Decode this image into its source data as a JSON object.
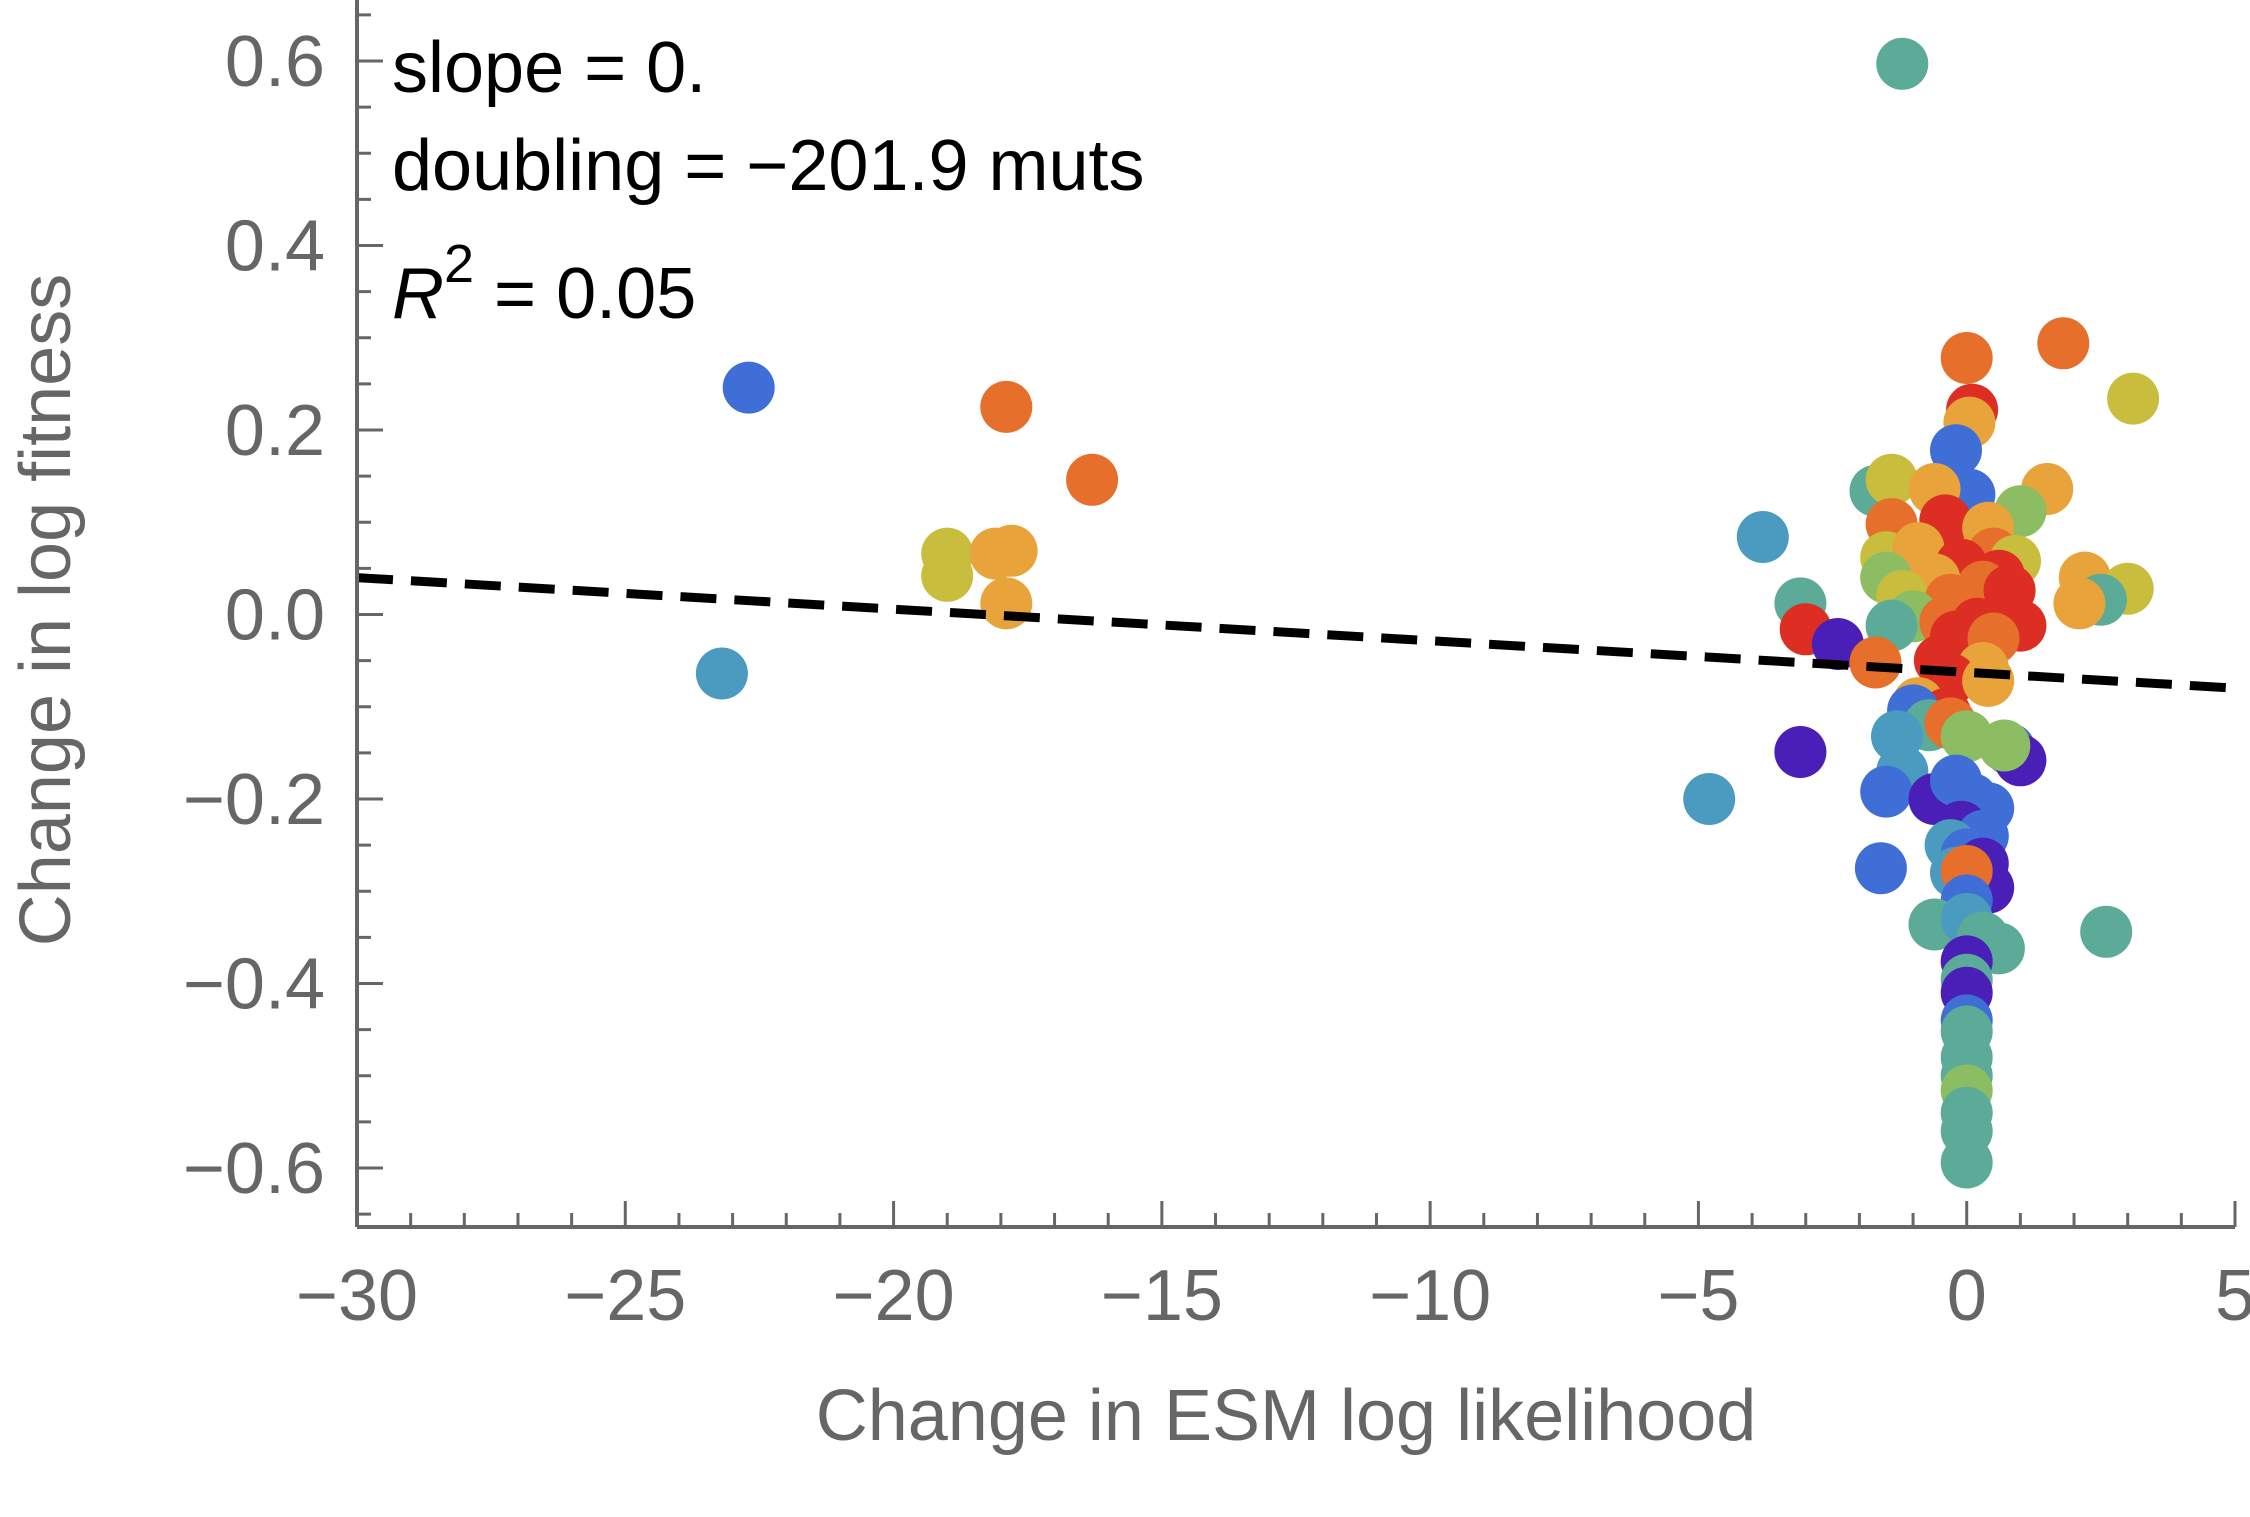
{
  "chart_data": {
    "type": "scatter",
    "xlabel": "Change in ESM log likelihood",
    "ylabel": "Change in log fitness",
    "xlim": [
      -30,
      5
    ],
    "ylim": [
      -0.66,
      0.66
    ],
    "xticks": [
      -30,
      -25,
      -20,
      -15,
      -10,
      -5,
      0,
      5
    ],
    "xtick_labels": [
      "−30",
      "−25",
      "−20",
      "−15",
      "−10",
      "−5",
      "0",
      "5"
    ],
    "yticks": [
      0.6,
      0.4,
      0.2,
      0.0,
      -0.2,
      -0.4,
      -0.6
    ],
    "ytick_labels": [
      "0.6",
      "0.4",
      "0.2",
      "0.0",
      "−0.2",
      "−0.4",
      "−0.6"
    ],
    "annotations": {
      "slope": "slope = 0.",
      "doubling": "doubling = −201.9 muts",
      "r2_symbol": "R",
      "r2_exp": "2",
      "r2_value": " = 0.05"
    },
    "fit_line": {
      "style": "dashed",
      "color": "#000000",
      "x": [
        -30,
        5
      ],
      "y": [
        0.04,
        -0.08
      ]
    },
    "grid": false,
    "colormap": [
      "#4a1fb8",
      "#3f6fd6",
      "#4b9bc0",
      "#5bab98",
      "#8cbd62",
      "#c8bd3d",
      "#e8a33a",
      "#e76f2c",
      "#dc2e22"
    ],
    "points": [
      {
        "x": -1.2,
        "y": 0.597,
        "c": "#5bab98"
      },
      {
        "x": -22.7,
        "y": 0.246,
        "c": "#3f6fd6"
      },
      {
        "x": -23.2,
        "y": -0.064,
        "c": "#4b9bc0"
      },
      {
        "x": -17.9,
        "y": 0.225,
        "c": "#e76f2c"
      },
      {
        "x": -16.3,
        "y": 0.146,
        "c": "#e76f2c"
      },
      {
        "x": -19.0,
        "y": 0.066,
        "c": "#c8bd3d"
      },
      {
        "x": -19.0,
        "y": 0.042,
        "c": "#c8bd3d"
      },
      {
        "x": -18.1,
        "y": 0.066,
        "c": "#e8a33a"
      },
      {
        "x": -17.8,
        "y": 0.069,
        "c": "#e8a33a"
      },
      {
        "x": -17.9,
        "y": 0.012,
        "c": "#e8a33a"
      },
      {
        "x": -3.8,
        "y": 0.084,
        "c": "#4b9bc0"
      },
      {
        "x": -3.1,
        "y": 0.012,
        "c": "#5bab98"
      },
      {
        "x": -3.0,
        "y": -0.016,
        "c": "#dc2e22"
      },
      {
        "x": -2.4,
        "y": -0.032,
        "c": "#4a1fb8"
      },
      {
        "x": -3.1,
        "y": -0.149,
        "c": "#4a1fb8"
      },
      {
        "x": -4.8,
        "y": -0.2,
        "c": "#4b9bc0"
      },
      {
        "x": -1.6,
        "y": -0.275,
        "c": "#3f6fd6"
      },
      {
        "x": 2.6,
        "y": -0.344,
        "c": "#5bab98"
      },
      {
        "x": 3.1,
        "y": 0.234,
        "c": "#c8bd3d"
      },
      {
        "x": 1.8,
        "y": 0.294,
        "c": "#e76f2c"
      },
      {
        "x": 0.0,
        "y": 0.278,
        "c": "#e76f2c"
      },
      {
        "x": 0.1,
        "y": 0.222,
        "c": "#dc2e22"
      },
      {
        "x": 0.05,
        "y": 0.208,
        "c": "#e8a33a"
      },
      {
        "x": -0.2,
        "y": 0.178,
        "c": "#3f6fd6"
      },
      {
        "x": 1.5,
        "y": 0.136,
        "c": "#e8a33a"
      },
      {
        "x": 0.05,
        "y": 0.13,
        "c": "#3f6fd6"
      },
      {
        "x": -1.7,
        "y": 0.134,
        "c": "#5bab98"
      },
      {
        "x": -1.4,
        "y": 0.146,
        "c": "#c8bd3d"
      },
      {
        "x": -0.6,
        "y": 0.136,
        "c": "#e8a33a"
      },
      {
        "x": 1.0,
        "y": 0.112,
        "c": "#8cbd62"
      },
      {
        "x": -1.4,
        "y": 0.098,
        "c": "#e76f2c"
      },
      {
        "x": -0.4,
        "y": 0.102,
        "c": "#dc2e22"
      },
      {
        "x": 0.4,
        "y": 0.094,
        "c": "#e8a33a"
      },
      {
        "x": -1.5,
        "y": 0.062,
        "c": "#c8bd3d"
      },
      {
        "x": -0.9,
        "y": 0.072,
        "c": "#e8a33a"
      },
      {
        "x": 0.5,
        "y": 0.066,
        "c": "#e76f2c"
      },
      {
        "x": -0.1,
        "y": 0.054,
        "c": "#dc2e22"
      },
      {
        "x": 0.9,
        "y": 0.058,
        "c": "#c8bd3d"
      },
      {
        "x": -1.5,
        "y": 0.04,
        "c": "#8cbd62"
      },
      {
        "x": -0.6,
        "y": 0.038,
        "c": "#e8a33a"
      },
      {
        "x": 0.6,
        "y": 0.042,
        "c": "#dc2e22"
      },
      {
        "x": 2.2,
        "y": 0.04,
        "c": "#e8a33a"
      },
      {
        "x": 3.0,
        "y": 0.028,
        "c": "#c8bd3d"
      },
      {
        "x": 0.3,
        "y": 0.03,
        "c": "#e76f2c"
      },
      {
        "x": 2.5,
        "y": 0.016,
        "c": "#5bab98"
      },
      {
        "x": 2.1,
        "y": 0.012,
        "c": "#e8a33a"
      },
      {
        "x": -1.2,
        "y": 0.02,
        "c": "#c8bd3d"
      },
      {
        "x": -0.3,
        "y": 0.016,
        "c": "#e76f2c"
      },
      {
        "x": 0.8,
        "y": 0.026,
        "c": "#dc2e22"
      },
      {
        "x": -1.0,
        "y": -0.002,
        "c": "#8cbd62"
      },
      {
        "x": -1.4,
        "y": -0.012,
        "c": "#5bab98"
      },
      {
        "x": -0.4,
        "y": -0.008,
        "c": "#e76f2c"
      },
      {
        "x": 0.2,
        "y": -0.01,
        "c": "#dc2e22"
      },
      {
        "x": 1.0,
        "y": -0.012,
        "c": "#dc2e22"
      },
      {
        "x": -0.2,
        "y": -0.024,
        "c": "#dc2e22"
      },
      {
        "x": 0.5,
        "y": -0.026,
        "c": "#e76f2c"
      },
      {
        "x": -1.7,
        "y": -0.052,
        "c": "#e76f2c"
      },
      {
        "x": -0.5,
        "y": -0.05,
        "c": "#dc2e22"
      },
      {
        "x": 0.3,
        "y": -0.058,
        "c": "#e8a33a"
      },
      {
        "x": -0.3,
        "y": -0.07,
        "c": "#dc2e22"
      },
      {
        "x": 0.4,
        "y": -0.072,
        "c": "#e8a33a"
      },
      {
        "x": -0.9,
        "y": -0.096,
        "c": "#e8a33a"
      },
      {
        "x": -0.4,
        "y": -0.108,
        "c": "#dc2e22"
      },
      {
        "x": -1.0,
        "y": -0.104,
        "c": "#3f6fd6"
      },
      {
        "x": -0.7,
        "y": -0.12,
        "c": "#5bab98"
      },
      {
        "x": -0.3,
        "y": -0.118,
        "c": "#e76f2c"
      },
      {
        "x": 0.0,
        "y": -0.132,
        "c": "#8cbd62"
      },
      {
        "x": -1.3,
        "y": -0.132,
        "c": "#4b9bc0"
      },
      {
        "x": 0.8,
        "y": -0.146,
        "c": "#3f6fd6"
      },
      {
        "x": 1.0,
        "y": -0.158,
        "c": "#4a1fb8"
      },
      {
        "x": 0.7,
        "y": -0.142,
        "c": "#8cbd62"
      },
      {
        "x": -1.2,
        "y": -0.17,
        "c": "#4b9bc0"
      },
      {
        "x": -1.5,
        "y": -0.192,
        "c": "#3f6fd6"
      },
      {
        "x": -0.6,
        "y": -0.2,
        "c": "#4a1fb8"
      },
      {
        "x": -0.2,
        "y": -0.18,
        "c": "#3f6fd6"
      },
      {
        "x": 0.1,
        "y": -0.2,
        "c": "#3f6fd6"
      },
      {
        "x": 0.4,
        "y": -0.21,
        "c": "#3f6fd6"
      },
      {
        "x": -0.1,
        "y": -0.23,
        "c": "#4a1fb8"
      },
      {
        "x": 0.3,
        "y": -0.24,
        "c": "#3f6fd6"
      },
      {
        "x": -0.3,
        "y": -0.25,
        "c": "#4b9bc0"
      },
      {
        "x": 0.0,
        "y": -0.26,
        "c": "#3f6fd6"
      },
      {
        "x": 0.3,
        "y": -0.27,
        "c": "#4a1fb8"
      },
      {
        "x": -0.2,
        "y": -0.28,
        "c": "#4b9bc0"
      },
      {
        "x": 0.4,
        "y": -0.296,
        "c": "#4a1fb8"
      },
      {
        "x": 0.0,
        "y": -0.278,
        "c": "#e76f2c"
      },
      {
        "x": 0.0,
        "y": -0.31,
        "c": "#3f6fd6"
      },
      {
        "x": -0.6,
        "y": -0.336,
        "c": "#5bab98"
      },
      {
        "x": 0.0,
        "y": -0.33,
        "c": "#4b9bc0"
      },
      {
        "x": 0.3,
        "y": -0.35,
        "c": "#5bab98"
      },
      {
        "x": 0.6,
        "y": -0.362,
        "c": "#5bab98"
      },
      {
        "x": 0.0,
        "y": -0.376,
        "c": "#4a1fb8"
      },
      {
        "x": 0.0,
        "y": -0.396,
        "c": "#5bab98"
      },
      {
        "x": 0.0,
        "y": -0.41,
        "c": "#4a1fb8"
      },
      {
        "x": 0.0,
        "y": -0.44,
        "c": "#3f6fd6"
      },
      {
        "x": 0.0,
        "y": -0.452,
        "c": "#5bab98"
      },
      {
        "x": 0.0,
        "y": -0.48,
        "c": "#5bab98"
      },
      {
        "x": 0.0,
        "y": -0.5,
        "c": "#5bab98"
      },
      {
        "x": 0.0,
        "y": -0.516,
        "c": "#8cbd62"
      },
      {
        "x": 0.0,
        "y": -0.54,
        "c": "#5bab98"
      },
      {
        "x": 0.0,
        "y": -0.56,
        "c": "#5bab98"
      },
      {
        "x": 0.0,
        "y": -0.594,
        "c": "#5bab98"
      }
    ]
  }
}
